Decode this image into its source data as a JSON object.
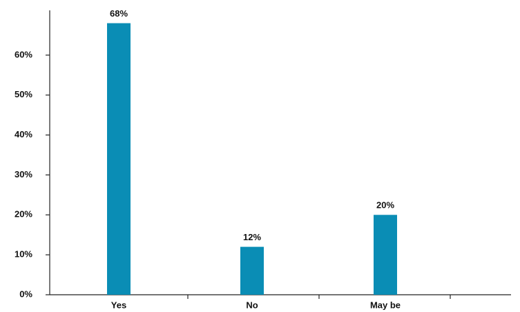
{
  "chart_data": {
    "type": "bar",
    "categories": [
      "Yes",
      "No",
      "May be"
    ],
    "values": [
      68,
      12,
      20
    ],
    "value_labels": [
      "68%",
      "12%",
      "20%"
    ],
    "color": "#0a8db5",
    "ylim": [
      0,
      70
    ],
    "yticks": [
      {
        "value": 0,
        "label": "0%"
      },
      {
        "value": 10,
        "label": "10%"
      },
      {
        "value": 20,
        "label": "20%"
      },
      {
        "value": 30,
        "label": "30%"
      },
      {
        "value": 40,
        "label": "40%"
      },
      {
        "value": 50,
        "label": "50%"
      },
      {
        "value": 60,
        "label": "60%"
      }
    ],
    "grid": false
  }
}
